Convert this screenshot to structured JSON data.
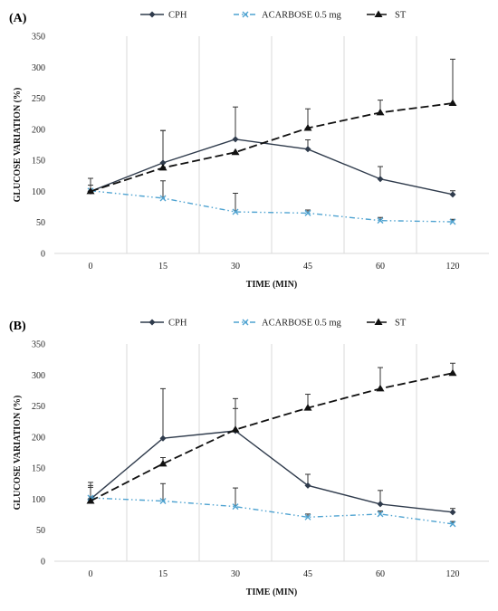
{
  "chart_data": [
    {
      "type": "line",
      "panel_label": "(A)",
      "categories": [
        "0",
        "15",
        "30",
        "45",
        "60",
        "120"
      ],
      "xlabel": "TIME (MIN)",
      "ylabel": "GLUCOSE VARIATION (%)",
      "ylim": [
        0,
        350
      ],
      "yticks": [
        0,
        50,
        100,
        150,
        200,
        250,
        300,
        350
      ],
      "grid": "vertical",
      "legend": "top-center",
      "series": [
        {
          "name": "CPH",
          "color": "#2f3b4c",
          "marker": "diamond",
          "dash": "solid",
          "values": [
            100,
            146,
            184,
            168,
            120,
            95
          ],
          "errors": [
            0,
            52,
            52,
            15,
            20,
            6
          ]
        },
        {
          "name": "ACARBOSE 0.5 mg",
          "color": "#4fa3d1",
          "marker": "x",
          "dash": "dashdotdot",
          "values": [
            101,
            89,
            67,
            65,
            53,
            51
          ],
          "errors": [
            20,
            28,
            30,
            5,
            5,
            4
          ]
        },
        {
          "name": "ST",
          "color": "#111111",
          "marker": "triangle",
          "dash": "dashed",
          "values": [
            100,
            138,
            163,
            202,
            227,
            242
          ],
          "errors": [
            10,
            60,
            0,
            31,
            20,
            71
          ]
        }
      ]
    },
    {
      "type": "line",
      "panel_label": "(B)",
      "categories": [
        "0",
        "15",
        "30",
        "45",
        "60",
        "120"
      ],
      "xlabel": "TIME (MIN)",
      "ylabel": "GLUCOSE VARIATION (%)",
      "ylim": [
        0,
        350
      ],
      "yticks": [
        0,
        50,
        100,
        150,
        200,
        250,
        300,
        350
      ],
      "grid": "vertical",
      "legend": "top-center",
      "series": [
        {
          "name": "CPH",
          "color": "#2f3b4c",
          "marker": "diamond",
          "dash": "solid",
          "values": [
            100,
            198,
            210,
            122,
            92,
            79
          ],
          "errors": [
            27,
            80,
            36,
            18,
            22,
            6
          ]
        },
        {
          "name": "ACARBOSE 0.5 mg",
          "color": "#4fa3d1",
          "marker": "x",
          "dash": "dashdotdot",
          "values": [
            102,
            97,
            88,
            71,
            76,
            60
          ],
          "errors": [
            20,
            28,
            30,
            5,
            5,
            4
          ]
        },
        {
          "name": "ST",
          "color": "#111111",
          "marker": "triangle",
          "dash": "dashed",
          "values": [
            97,
            157,
            212,
            247,
            278,
            303
          ],
          "errors": [
            22,
            10,
            50,
            22,
            34,
            16
          ]
        }
      ]
    }
  ]
}
